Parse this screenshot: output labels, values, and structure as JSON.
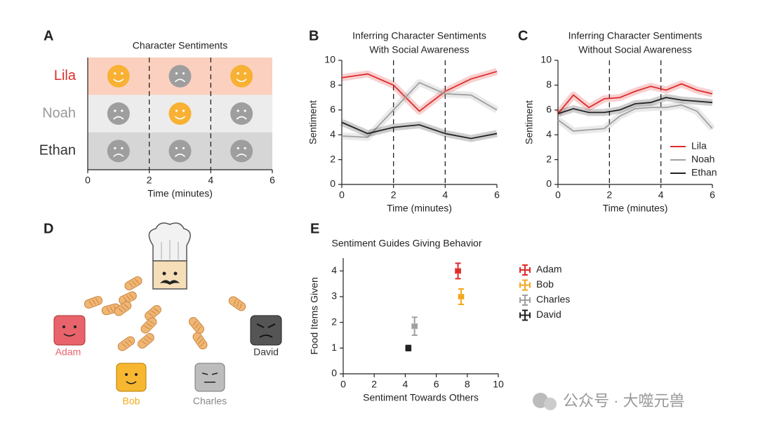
{
  "panel_labels": [
    "A",
    "B",
    "C",
    "D",
    "E"
  ],
  "diagram": {
    "characters": [
      "Adam",
      "Bob",
      "Charles",
      "David"
    ]
  },
  "watermark": "公众号 · 大噬元兽",
  "chart_data": [
    {
      "type": "sentiment_grid",
      "title": "Character Sentiments",
      "rows": [
        "Lila",
        "Noah",
        "Ethan"
      ],
      "row_label_colors": [
        "#e02b2b",
        "#999999",
        "#333333"
      ],
      "row_colors": [
        "#fbd0bf",
        "#ececec",
        "#d6d6d6"
      ],
      "faces_happy": [
        [
          true,
          false,
          true
        ],
        [
          false,
          true,
          false
        ],
        [
          false,
          false,
          false
        ]
      ],
      "happy_color": "#f8b133",
      "sad_color": "#9e9e9e",
      "xlabel": "Time (minutes)",
      "xlim": [
        0,
        6
      ],
      "xticks": [
        0,
        2,
        4,
        6
      ],
      "vlines": [
        2,
        4
      ]
    },
    {
      "type": "line",
      "title": [
        "Inferring Character Sentiments",
        "With Social Awareness"
      ],
      "xlabel": "Time (minutes)",
      "ylabel": "Sentiment",
      "x": [
        0,
        1,
        2,
        3,
        4,
        5,
        6
      ],
      "series": [
        {
          "name": "Lila",
          "color": "#e02b2b",
          "values": [
            8.6,
            8.9,
            8.0,
            5.9,
            7.5,
            8.5,
            9.1
          ]
        },
        {
          "name": "Noah",
          "color": "#a0a0a0",
          "values": [
            3.9,
            3.8,
            6.0,
            8.2,
            7.3,
            7.2,
            6.0
          ]
        },
        {
          "name": "Ethan",
          "color": "#222222",
          "values": [
            5.0,
            4.1,
            4.6,
            4.8,
            4.1,
            3.7,
            4.1
          ]
        }
      ],
      "xlim": [
        0,
        6
      ],
      "xticks": [
        0,
        2,
        4,
        6
      ],
      "ylim": [
        0,
        10
      ],
      "yticks": [
        0,
        2,
        4,
        6,
        8,
        10
      ],
      "vlines": [
        2,
        4
      ]
    },
    {
      "type": "line",
      "title": [
        "Inferring Character Sentiments",
        "Without Social Awareness"
      ],
      "xlabel": "Time (minutes)",
      "ylabel": "Sentiment",
      "x": [
        0,
        0.6,
        1.2,
        1.8,
        2.4,
        3,
        3.6,
        4.2,
        4.8,
        5.4,
        6
      ],
      "series": [
        {
          "name": "Lila",
          "color": "#e02b2b",
          "values": [
            5.7,
            7.2,
            6.2,
            6.9,
            7.0,
            7.5,
            7.9,
            7.6,
            8.1,
            7.6,
            7.3
          ]
        },
        {
          "name": "Noah",
          "color": "#a0a0a0",
          "values": [
            5.2,
            4.3,
            4.4,
            4.5,
            5.5,
            6.1,
            6.2,
            6.2,
            6.4,
            5.9,
            4.5
          ]
        },
        {
          "name": "Ethan",
          "color": "#222222",
          "values": [
            5.7,
            6.1,
            5.8,
            5.8,
            6.0,
            6.5,
            6.6,
            7.0,
            6.8,
            6.7,
            6.6
          ]
        }
      ],
      "xlim": [
        0,
        6
      ],
      "xticks": [
        0,
        2,
        4,
        6
      ],
      "ylim": [
        0,
        10
      ],
      "yticks": [
        0,
        2,
        4,
        6,
        8,
        10
      ],
      "vlines": [
        2,
        4
      ],
      "legend": "lower right"
    },
    {
      "type": "errorbar",
      "title": "Sentiment Guides Giving Behavior",
      "xlabel": "Sentiment Towards Others",
      "ylabel": "Food Items Given",
      "series": [
        {
          "name": "Adam",
          "color": "#e02b2b",
          "x": [
            7.4
          ],
          "values": [
            4.0
          ],
          "xerr": [
            0.15
          ],
          "yerr": [
            0.3
          ]
        },
        {
          "name": "Bob",
          "color": "#f2a81d",
          "x": [
            7.6
          ],
          "values": [
            3.0
          ],
          "xerr": [
            0.15
          ],
          "yerr": [
            0.3
          ]
        },
        {
          "name": "Charles",
          "color": "#a0a0a0",
          "x": [
            4.6
          ],
          "values": [
            1.85
          ],
          "xerr": [
            0.15
          ],
          "yerr": [
            0.35
          ]
        },
        {
          "name": "David",
          "color": "#222222",
          "x": [
            4.2
          ],
          "values": [
            1.0
          ],
          "xerr": [
            0.15
          ],
          "yerr": [
            0.1
          ]
        }
      ],
      "xlim": [
        0,
        10
      ],
      "xticks": [
        0,
        2,
        4,
        6,
        8,
        10
      ],
      "ylim": [
        0,
        4.5
      ],
      "yticks": [
        0,
        1,
        2,
        3,
        4
      ],
      "legend": "outside right"
    }
  ]
}
